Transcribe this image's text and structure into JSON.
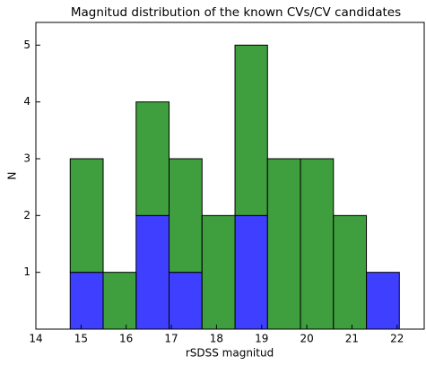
{
  "chart_data": {
    "type": "histogram",
    "title": "Magnitud distribution of the known CVs/CV candidates",
    "xlabel": "rSDSS magnitud",
    "ylabel": "N",
    "bins": [
      14.76,
      15.49,
      16.22,
      16.95,
      17.68,
      18.41,
      19.13,
      19.86,
      20.59,
      21.32,
      22.05
    ],
    "stacked": true,
    "series": [
      {
        "color": "#3f3fff",
        "values": [
          1,
          0,
          2,
          1,
          0,
          2,
          0,
          0,
          0,
          1
        ]
      },
      {
        "color": "#3f9f3f",
        "values": [
          2,
          1,
          2,
          2,
          2,
          3,
          3,
          3,
          2,
          0
        ]
      }
    ],
    "xlim": [
      14,
      22.6
    ],
    "xticks": [
      14,
      15,
      16,
      17,
      18,
      19,
      20,
      21,
      22
    ],
    "ylim": [
      0,
      5.4
    ],
    "yticks": [
      1,
      2,
      3,
      4,
      5
    ]
  }
}
